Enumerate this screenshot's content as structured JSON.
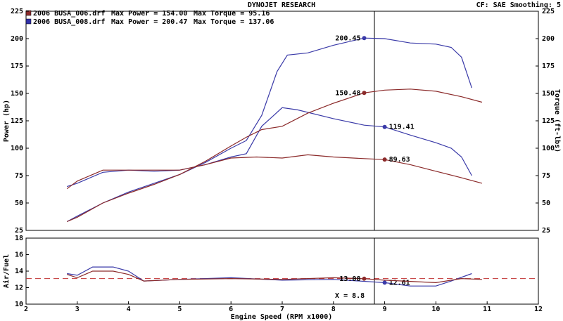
{
  "chart_data": [
    {
      "type": "line",
      "title": "DYNOJET RESEARCH",
      "subtitle": "CF: SAE  Smoothing: 5",
      "y_label": "Power (hp)",
      "y2_label": "Torque (ft-lbs)",
      "legend": [
        {
          "name": "2006 BUSA_006.drf",
          "color": "#8b2a2a",
          "max_power": "Max Power = 154.00",
          "max_torque": "Max Torque = 95.16"
        },
        {
          "name": "2006 BUSA_008.drf",
          "color": "#2f2fa8",
          "max_power": "Max Power = 200.47",
          "max_torque": "Max Torque = 137.06"
        }
      ],
      "xlim": [
        2,
        12
      ],
      "ylim": [
        25,
        225
      ],
      "yticks": [
        25,
        50,
        75,
        100,
        125,
        150,
        175,
        200,
        225
      ],
      "y2lim": [
        25,
        225
      ],
      "y2ticks": [
        25,
        50,
        75,
        100,
        125,
        150,
        175,
        200,
        225
      ],
      "series": [
        {
          "color": "#3a3aa8",
          "x": [
            2.8,
            3,
            3.5,
            4,
            4.5,
            5,
            5.5,
            6,
            6.3,
            6.6,
            6.9,
            7.1,
            7.5,
            8,
            8.6,
            9,
            9.5,
            10,
            10.3,
            10.5,
            10.7
          ],
          "values": [
            33,
            38,
            50,
            60,
            68,
            76,
            87,
            100,
            107,
            130,
            170,
            185,
            187,
            194,
            200.5,
            200,
            196,
            195,
            192,
            183,
            155
          ],
          "cursor": {
            "x": 8.6,
            "value": 200.45
          }
        },
        {
          "color": "#3a3aa8",
          "axis": "y2",
          "x": [
            2.8,
            3,
            3.5,
            4,
            4.5,
            5,
            5.5,
            6,
            6.3,
            6.6,
            7,
            7.3,
            8,
            8.6,
            9,
            9.5,
            10,
            10.3,
            10.5,
            10.7
          ],
          "values": [
            65,
            68,
            78,
            80,
            79,
            80,
            85,
            92,
            95,
            120,
            137,
            135,
            127,
            121,
            119.4,
            112,
            105,
            100,
            92,
            75
          ],
          "cursor": {
            "x": 9.0,
            "value": 119.41
          }
        },
        {
          "color": "#8b2a2a",
          "x": [
            2.8,
            3,
            3.5,
            4,
            4.5,
            5,
            5.5,
            6,
            6.3,
            6.6,
            7,
            7.5,
            8,
            8.6,
            9,
            9.5,
            10,
            10.5,
            10.9
          ],
          "values": [
            33,
            37,
            50,
            59,
            67,
            76,
            88,
            102,
            110,
            117,
            120,
            132,
            141,
            150.5,
            153,
            154,
            152,
            147,
            142
          ],
          "cursor": {
            "x": 8.6,
            "value": 150.48
          }
        },
        {
          "color": "#8b2a2a",
          "axis": "y2",
          "x": [
            2.8,
            3,
            3.5,
            4,
            4.5,
            5,
            5.5,
            6,
            6.5,
            7,
            7.5,
            8,
            8.6,
            9,
            9.5,
            10,
            10.5,
            10.9
          ],
          "values": [
            63,
            70,
            80,
            80,
            80,
            80,
            85,
            91,
            92,
            91,
            94,
            92,
            90.5,
            89.6,
            85,
            79,
            73,
            68
          ],
          "cursor": {
            "x": 9.0,
            "value": 89.63
          }
        }
      ]
    },
    {
      "type": "line",
      "y_label": "Air/Fuel",
      "x_label": "Engine Speed (RPM x1000)",
      "xlim": [
        2,
        12
      ],
      "xticks": [
        2,
        3,
        4,
        5,
        6,
        7,
        8,
        9,
        10,
        11,
        12
      ],
      "ylim": [
        10,
        18
      ],
      "yticks": [
        10,
        12,
        14,
        16,
        18
      ],
      "target_afr": 13.1,
      "cursor_x": 8.8,
      "cursor_label": "X = 8.8",
      "series": [
        {
          "color": "#3a3aa8",
          "x": [
            2.8,
            3,
            3.3,
            3.7,
            4,
            4.3,
            5,
            6,
            7,
            8,
            9,
            9.5,
            10,
            10.3,
            10.7
          ],
          "values": [
            13.7,
            13.5,
            14.5,
            14.5,
            14.0,
            12.8,
            13.0,
            13.2,
            12.9,
            13.0,
            12.6,
            12.2,
            12.2,
            12.8,
            13.7
          ],
          "cursor": {
            "x": 9.0,
            "value": 12.61
          }
        },
        {
          "color": "#8b2a2a",
          "x": [
            2.8,
            3,
            3.3,
            3.7,
            4,
            4.3,
            5,
            6,
            7,
            8,
            8.6,
            9,
            10,
            10.5,
            10.9
          ],
          "values": [
            13.6,
            13.2,
            14.0,
            14.0,
            13.6,
            12.8,
            13.0,
            13.1,
            13.0,
            13.2,
            13.08,
            12.9,
            12.6,
            13.1,
            13.0
          ],
          "cursor": {
            "x": 8.6,
            "value": 13.08
          }
        }
      ]
    }
  ]
}
